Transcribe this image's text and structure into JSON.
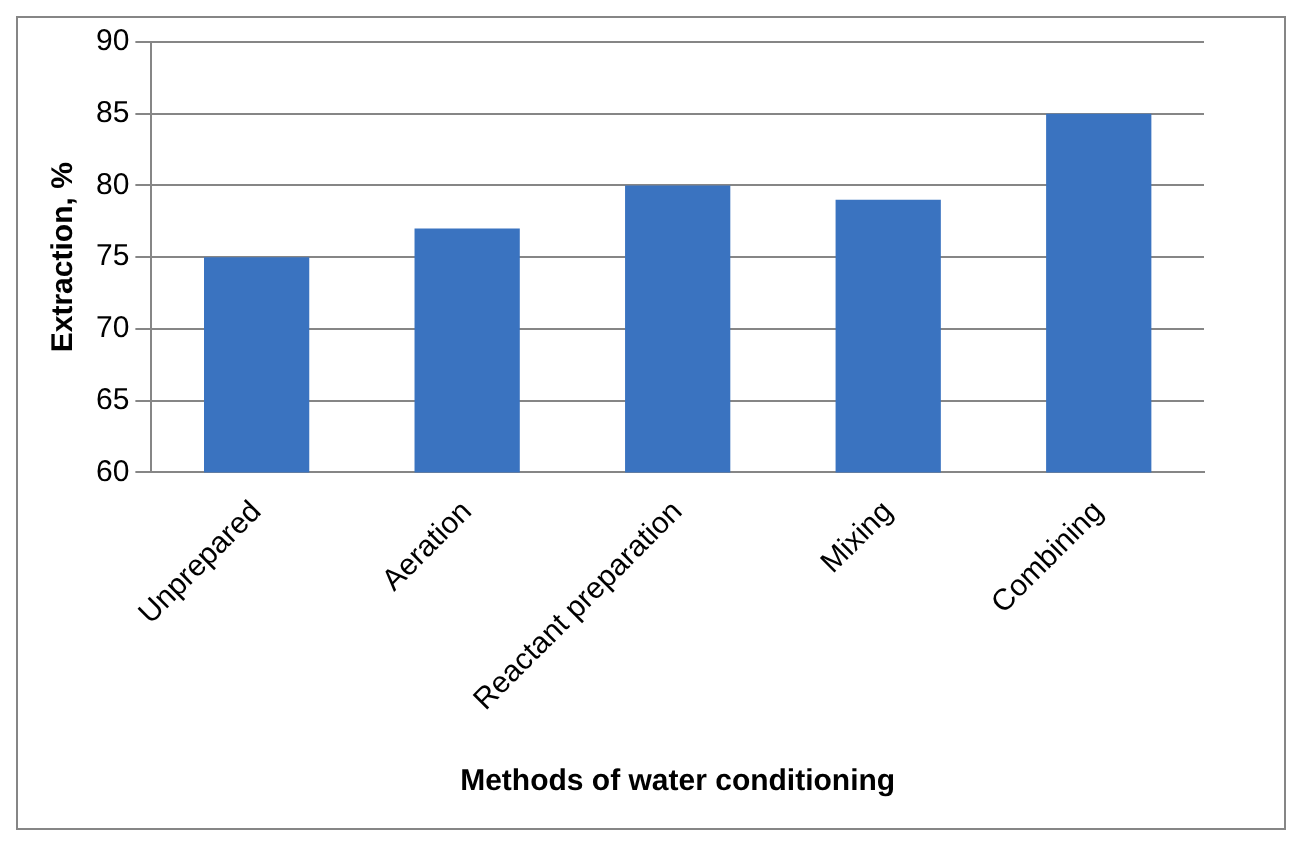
{
  "chart_data": {
    "type": "bar",
    "xlabel": "Methods of water conditioning",
    "ylabel": "Extraction, %",
    "categories": [
      "Unprepared",
      "Aeration",
      "Reactant preparation",
      "Mixing",
      "Combining"
    ],
    "values": [
      75,
      77,
      80,
      79,
      85
    ],
    "color": "#3a73c0",
    "ylim": [
      60,
      90
    ],
    "yticks": [
      60,
      65,
      70,
      75,
      80,
      85,
      90
    ],
    "grid": "y"
  }
}
